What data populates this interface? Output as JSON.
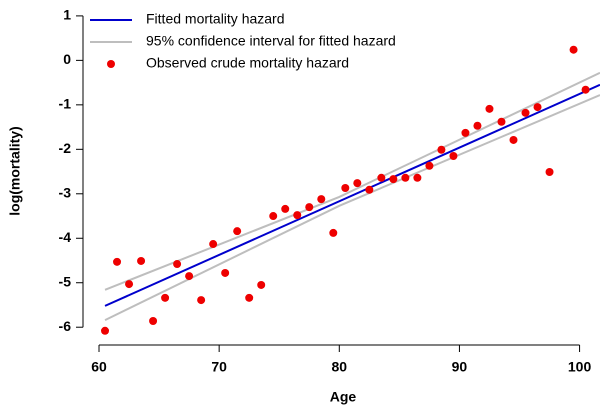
{
  "chart_data": {
    "type": "line",
    "xlabel": "Age",
    "ylabel": "log(mortality)",
    "xlim": [
      59,
      101.7
    ],
    "ylim": [
      -6.4,
      1.2
    ],
    "xticks": [
      60,
      70,
      80,
      90,
      100
    ],
    "yticks": [
      -6,
      -5,
      -4,
      -3,
      -2,
      -1,
      0,
      1
    ],
    "legend": "top-left",
    "series": [
      {
        "name": "Fitted mortality hazard",
        "type": "line",
        "color": "#0000cc",
        "x": [
          60.5,
          101.7
        ],
        "values": [
          -5.52,
          -0.55
        ]
      },
      {
        "name": "95% confidence interval for fitted hazard",
        "type": "band",
        "color": "#bebebe",
        "x": [
          60.5,
          80,
          101.7
        ],
        "values": [
          -5.16,
          -3.07,
          -0.28
        ],
        "lower": [
          -5.84,
          -3.27,
          -0.78
        ]
      },
      {
        "name": "Observed crude mortality hazard",
        "type": "scatter",
        "color": "#ee0000",
        "x": [
          60.5,
          61.5,
          62.5,
          63.5,
          64.5,
          65.5,
          66.5,
          67.5,
          68.5,
          69.5,
          70.5,
          71.5,
          72.5,
          73.5,
          74.5,
          75.5,
          76.5,
          77.5,
          78.5,
          79.5,
          80.5,
          81.5,
          82.5,
          83.5,
          84.5,
          85.5,
          86.5,
          87.5,
          88.5,
          89.5,
          90.5,
          91.5,
          92.5,
          93.5,
          94.5,
          95.5,
          96.5,
          97.5,
          99.5,
          100.5
        ],
        "values": [
          -6.08,
          -4.53,
          -5.03,
          -4.51,
          -5.86,
          -5.34,
          -4.58,
          -4.85,
          -5.39,
          -4.13,
          -4.78,
          -3.84,
          -5.34,
          -5.05,
          -3.5,
          -3.34,
          -3.48,
          -3.3,
          -3.12,
          -3.88,
          -2.87,
          -2.76,
          -2.91,
          -2.64,
          -2.67,
          -2.64,
          -2.64,
          -2.37,
          -2.01,
          -2.15,
          -1.63,
          -1.47,
          -1.09,
          -1.38,
          -1.79,
          -1.18,
          -1.05,
          -2.51,
          0.24,
          -0.66
        ]
      }
    ]
  }
}
